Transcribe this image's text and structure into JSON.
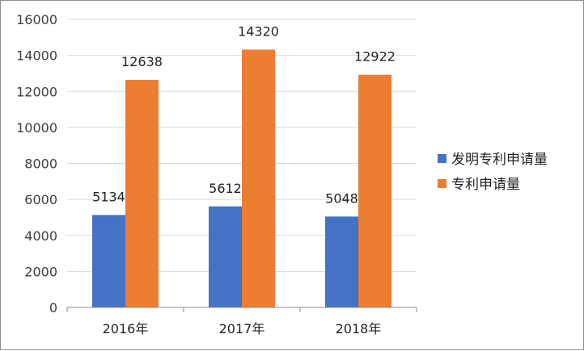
{
  "chart_data": {
    "type": "bar",
    "categories": [
      "2016年",
      "2017年",
      "2018年"
    ],
    "series": [
      {
        "name": "发明专利申请量",
        "values": [
          5134,
          5612,
          5048
        ],
        "color": "#4472c4"
      },
      {
        "name": "专利申请量",
        "values": [
          12638,
          14320,
          12922
        ],
        "color": "#ed7d31"
      }
    ],
    "yticks": [
      0,
      2000,
      4000,
      6000,
      8000,
      10000,
      12000,
      14000,
      16000
    ],
    "ylim": [
      0,
      16000
    ],
    "grid": true,
    "legend_position": "right",
    "data_labels": true
  }
}
